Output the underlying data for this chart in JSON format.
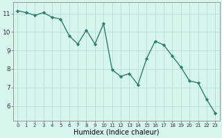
{
  "x": [
    0,
    1,
    2,
    3,
    4,
    5,
    6,
    7,
    8,
    9,
    10,
    11,
    12,
    13,
    14,
    15,
    16,
    17,
    18,
    19,
    20,
    21,
    22,
    23
  ],
  "y": [
    11.15,
    11.05,
    10.9,
    11.05,
    10.8,
    10.7,
    9.8,
    9.35,
    10.1,
    9.35,
    10.45,
    7.95,
    7.6,
    7.75,
    7.15,
    8.55,
    9.5,
    9.3,
    8.7,
    8.1,
    7.35,
    7.25,
    6.35,
    5.6
  ],
  "line_color": "#2e7d6e",
  "marker": "D",
  "markersize": 2.2,
  "linewidth": 1.0,
  "bg_color": "#d6f5ef",
  "grid_color": "#b8ddd6",
  "xlabel": "Humidex (Indice chaleur)",
  "xlabel_fontsize": 7,
  "yticks": [
    6,
    7,
    8,
    9,
    10,
    11
  ],
  "xticks": [
    0,
    1,
    2,
    3,
    4,
    5,
    6,
    7,
    8,
    9,
    10,
    11,
    12,
    13,
    14,
    15,
    16,
    17,
    18,
    19,
    20,
    21,
    22,
    23
  ],
  "ylim": [
    5.2,
    11.6
  ],
  "xlim": [
    -0.5,
    23.5
  ],
  "tick_fontsize_x": 5.0,
  "tick_fontsize_y": 6.5
}
